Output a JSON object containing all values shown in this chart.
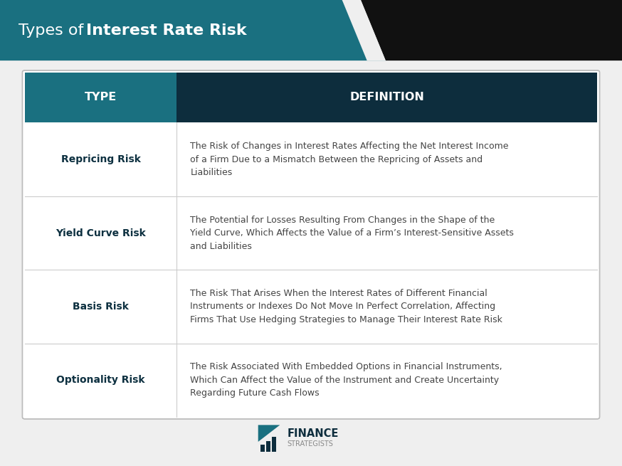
{
  "title_plain": "Types of ",
  "title_bold": "Interest Rate Risk",
  "header_type_text": "TYPE",
  "header_def_text": "DEFINITION",
  "bg_color": "#efefef",
  "table_bg": "#ffffff",
  "row_divider_color": "#cccccc",
  "col_split": 0.265,
  "rows": [
    {
      "type": "Repricing Risk",
      "definition": "The Risk of Changes in Interest Rates Affecting the Net Interest Income\nof a Firm Due to a Mismatch Between the Repricing of Assets and\nLiabilities"
    },
    {
      "type": "Yield Curve Risk",
      "definition": "The Potential for Losses Resulting From Changes in the Shape of the\nYield Curve, Which Affects the Value of a Firm’s Interest-Sensitive Assets\nand Liabilities"
    },
    {
      "type": "Basis Risk",
      "definition": "The Risk That Arises When the Interest Rates of Different Financial\nInstruments or Indexes Do Not Move In Perfect Correlation, Affecting\nFirms That Use Hedging Strategies to Manage Their Interest Rate Risk"
    },
    {
      "type": "Optionality Risk",
      "definition": "The Risk Associated With Embedded Options in Financial Instruments,\nWhich Can Affect the Value of the Instrument and Create Uncertainty\nRegarding Future Cash Flows"
    }
  ],
  "title_color": "#ffffff",
  "type_text_color": "#0d3040",
  "def_text_color": "#444444",
  "header_text_color": "#ffffff",
  "teal_header": "#1a7080",
  "dark_header": "#0d2d3d",
  "logo_teal": "#1a7080",
  "logo_dark": "#0d2d3d",
  "logo_gray": "#888888"
}
